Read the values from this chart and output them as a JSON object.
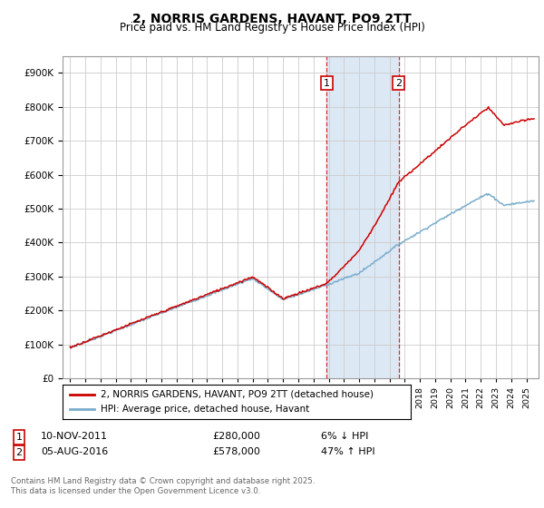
{
  "title": "2, NORRIS GARDENS, HAVANT, PO9 2TT",
  "subtitle": "Price paid vs. HM Land Registry's House Price Index (HPI)",
  "legend_line1": "2, NORRIS GARDENS, HAVANT, PO9 2TT (detached house)",
  "legend_line2": "HPI: Average price, detached house, Havant",
  "sale1_date": "10-NOV-2011",
  "sale1_price": "£280,000",
  "sale1_hpi": "6% ↓ HPI",
  "sale1_year": 2011.87,
  "sale1_value": 280000,
  "sale2_date": "05-AUG-2016",
  "sale2_price": "£578,000",
  "sale2_hpi": "47% ↑ HPI",
  "sale2_year": 2016.59,
  "sale2_value": 578000,
  "footer": "Contains HM Land Registry data © Crown copyright and database right 2025.\nThis data is licensed under the Open Government Licence v3.0.",
  "line_color_red": "#cc0000",
  "line_color_blue": "#7aadcc",
  "shade_color": "#dde8f5",
  "grid_color": "#cccccc",
  "background_color": "#ffffff",
  "ylim_max": 950000,
  "xlim_start": 1994.5,
  "xlim_end": 2025.8
}
